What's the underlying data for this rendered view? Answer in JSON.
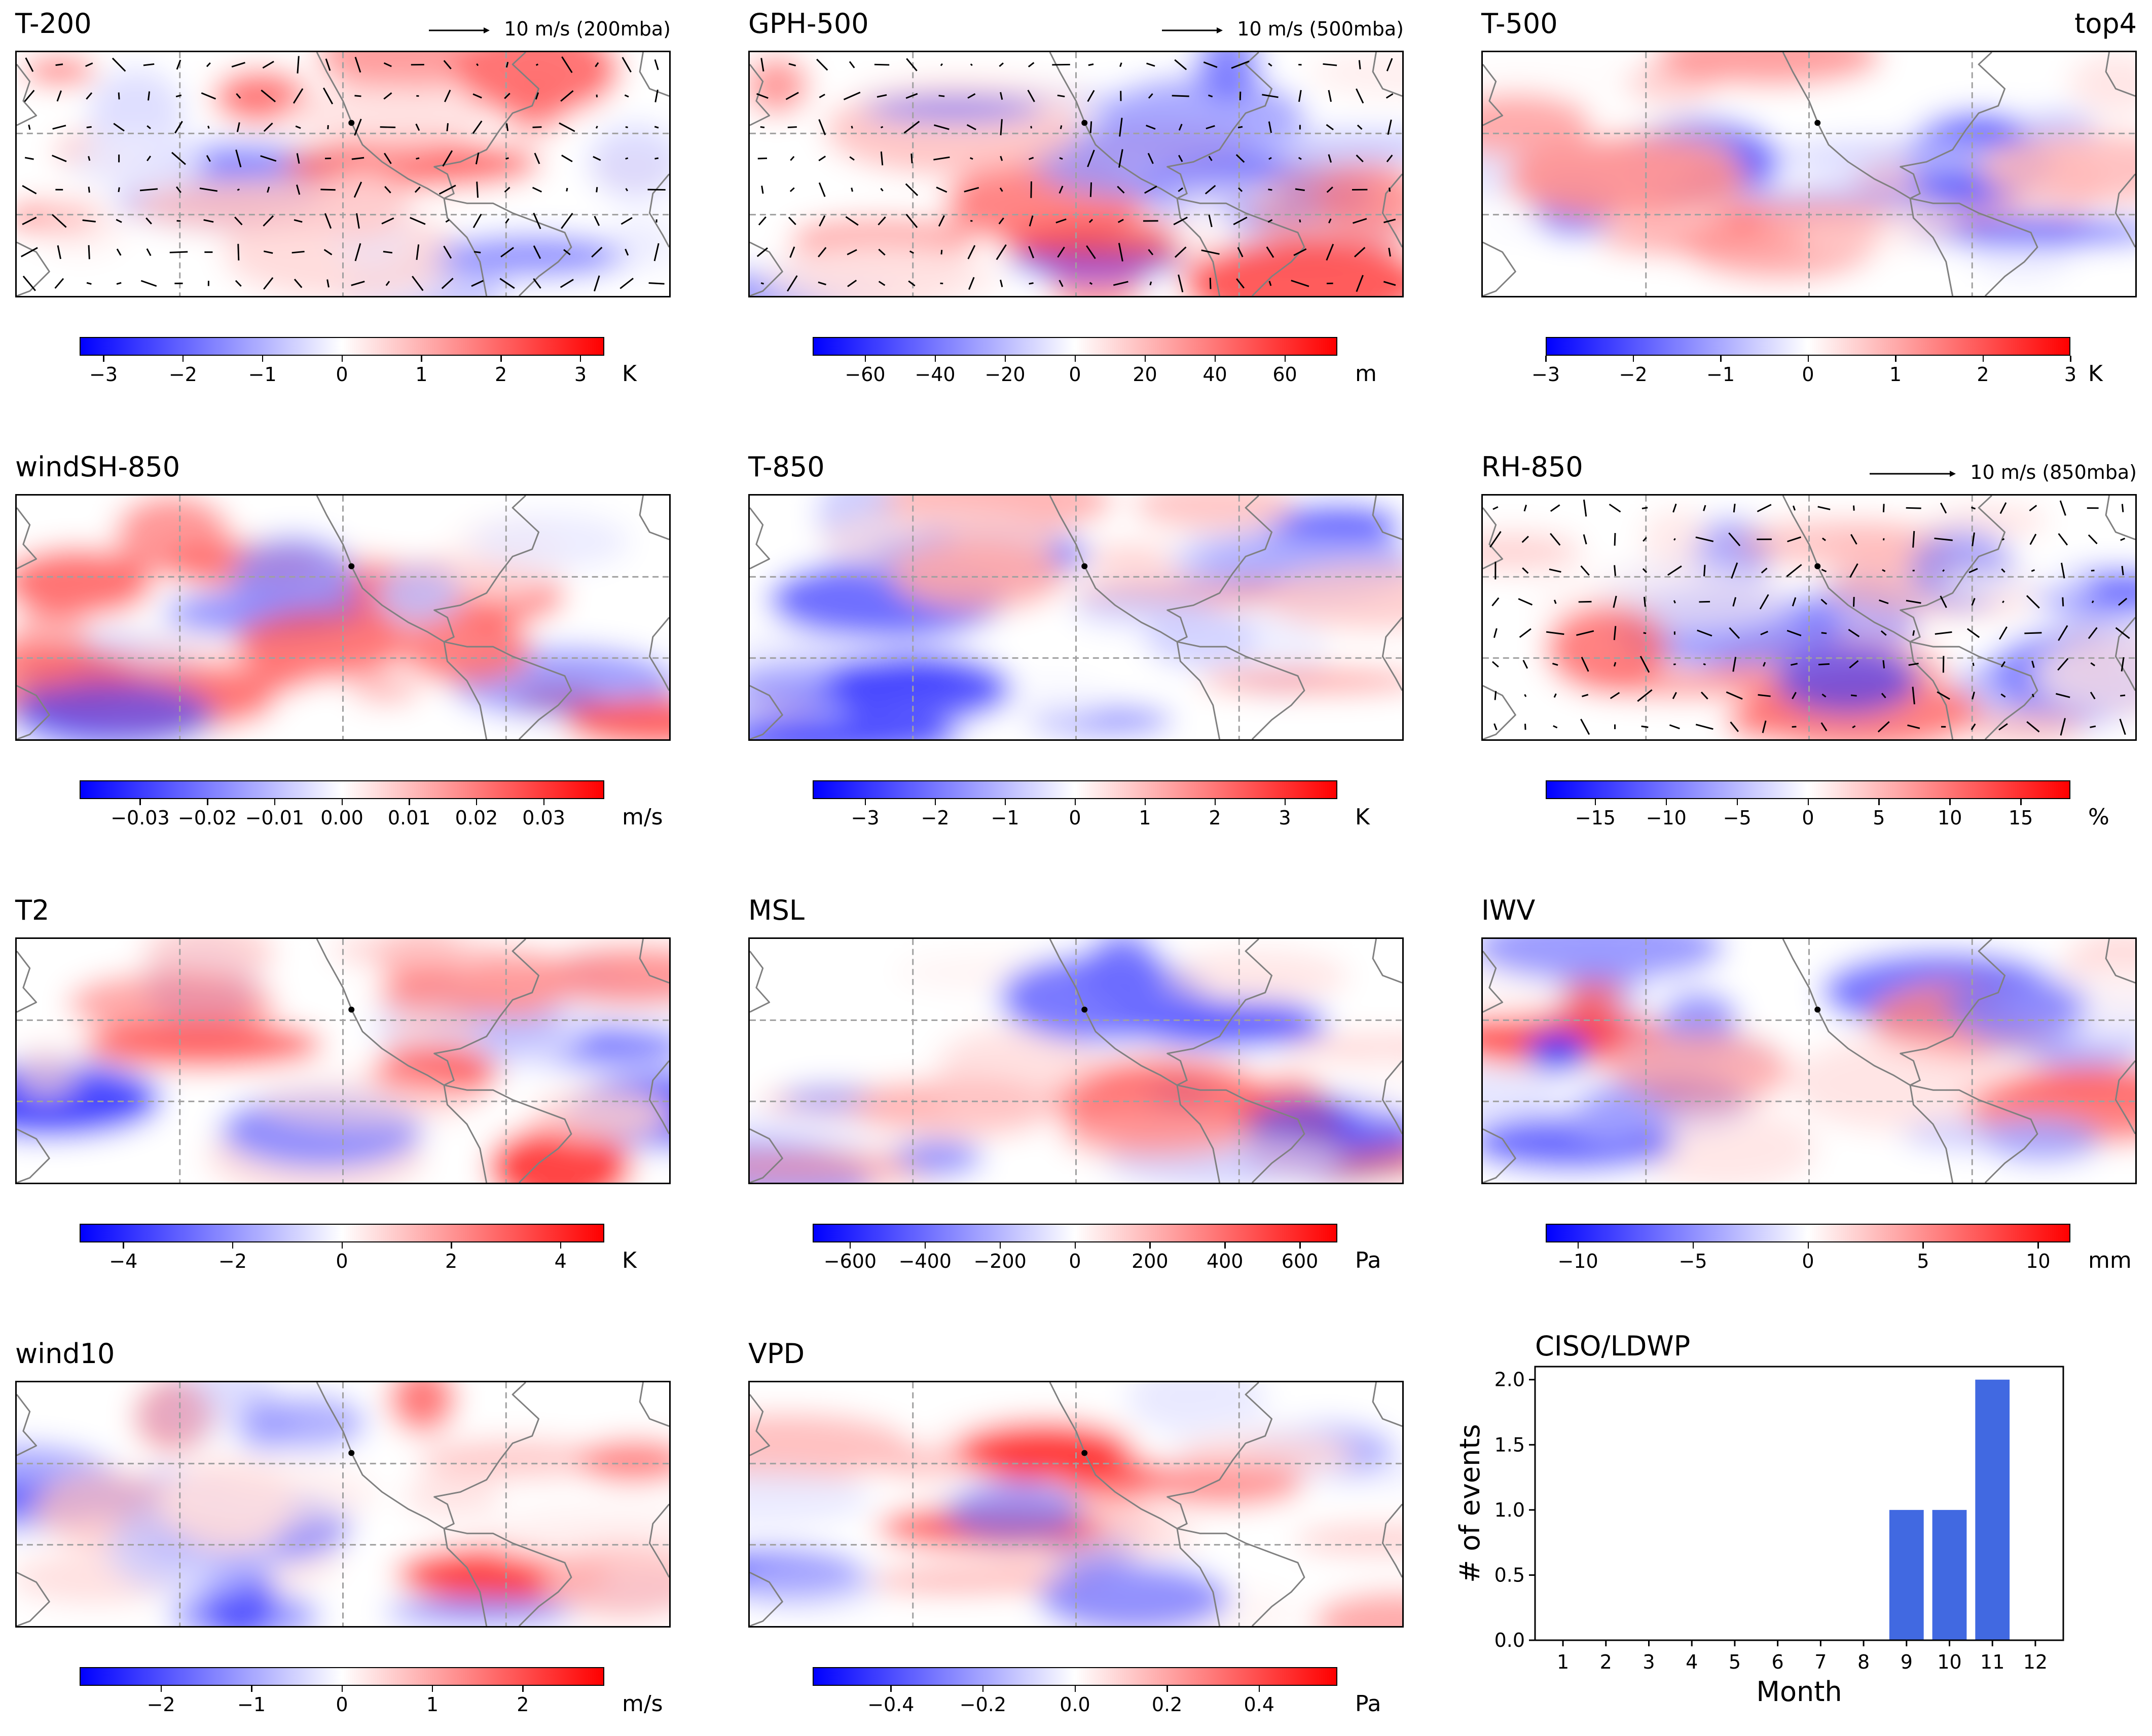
{
  "colors": {
    "cmap_low": "#0000ff",
    "cmap_mid": "#ffffff",
    "cmap_high": "#ff0000",
    "bar": "#4169e1",
    "coast": "#808080",
    "grid": "#a0a0a0"
  },
  "panels": [
    {
      "id": "t200",
      "title": "T-200",
      "title_right": "",
      "quiver_key": "10 m/s (200mba)",
      "vectors": true,
      "unit": "K",
      "range": [
        -3.3,
        3.3
      ],
      "ticks": [
        "−3",
        "−2",
        "−1",
        "0",
        "1",
        "2",
        "3"
      ],
      "tick_values": [
        -3,
        -2,
        -1,
        0,
        1,
        2,
        3
      ]
    },
    {
      "id": "gph500",
      "title": "GPH-500",
      "title_right": "",
      "quiver_key": "10 m/s (500mba)",
      "vectors": true,
      "unit": "m",
      "range": [
        -75,
        75
      ],
      "ticks": [
        "−60",
        "−40",
        "−20",
        "0",
        "20",
        "40",
        "60"
      ],
      "tick_values": [
        -60,
        -40,
        -20,
        0,
        20,
        40,
        60
      ]
    },
    {
      "id": "t500",
      "title": "T-500",
      "title_right": "top4",
      "quiver_key": "",
      "vectors": false,
      "unit": "K",
      "range": [
        -3,
        3
      ],
      "ticks": [
        "−3",
        "−2",
        "−1",
        "0",
        "1",
        "2",
        "3"
      ],
      "tick_values": [
        -3,
        -2,
        -1,
        0,
        1,
        2,
        3
      ]
    },
    {
      "id": "windsh850",
      "title": "windSH-850",
      "title_right": "",
      "quiver_key": "",
      "vectors": false,
      "unit": "m/s",
      "range": [
        -0.039,
        0.039
      ],
      "ticks": [
        "−0.03",
        "−0.02",
        "−0.01",
        "0.00",
        "0.01",
        "0.02",
        "0.03"
      ],
      "tick_values": [
        -0.03,
        -0.02,
        -0.01,
        0,
        0.01,
        0.02,
        0.03
      ]
    },
    {
      "id": "t850",
      "title": "T-850",
      "title_right": "",
      "quiver_key": "",
      "vectors": false,
      "unit": "K",
      "range": [
        -3.75,
        3.75
      ],
      "ticks": [
        "−3",
        "−2",
        "−1",
        "0",
        "1",
        "2",
        "3"
      ],
      "tick_values": [
        -3,
        -2,
        -1,
        0,
        1,
        2,
        3
      ]
    },
    {
      "id": "rh850",
      "title": "RH-850",
      "title_right": "",
      "quiver_key": "10 m/s (850mba)",
      "vectors": true,
      "unit": "%",
      "range": [
        -18.5,
        18.5
      ],
      "ticks": [
        "−15",
        "−10",
        "−5",
        "0",
        "5",
        "10",
        "15"
      ],
      "tick_values": [
        -15,
        -10,
        -5,
        0,
        5,
        10,
        15
      ]
    },
    {
      "id": "t2",
      "title": "T2",
      "title_right": "",
      "quiver_key": "",
      "vectors": false,
      "unit": "K",
      "range": [
        -4.8,
        4.8
      ],
      "ticks": [
        "−4",
        "−2",
        "0",
        "2",
        "4"
      ],
      "tick_values": [
        -4,
        -2,
        0,
        2,
        4
      ]
    },
    {
      "id": "msl",
      "title": "MSL",
      "title_right": "",
      "quiver_key": "",
      "vectors": false,
      "unit": "Pa",
      "range": [
        -700,
        700
      ],
      "ticks": [
        "−600",
        "−400",
        "−200",
        "0",
        "200",
        "400",
        "600"
      ],
      "tick_values": [
        -600,
        -400,
        -200,
        0,
        200,
        400,
        600
      ]
    },
    {
      "id": "iwv",
      "title": "IWV",
      "title_right": "",
      "quiver_key": "",
      "vectors": false,
      "unit": "mm",
      "range": [
        -11.4,
        11.4
      ],
      "ticks": [
        "−10",
        "−5",
        "0",
        "5",
        "10"
      ],
      "tick_values": [
        -10,
        -5,
        0,
        5,
        10
      ]
    },
    {
      "id": "wind10",
      "title": "wind10",
      "title_right": "",
      "quiver_key": "",
      "vectors": false,
      "unit": "m/s",
      "range": [
        -2.9,
        2.9
      ],
      "ticks": [
        "−2",
        "−1",
        "0",
        "1",
        "2"
      ],
      "tick_values": [
        -2,
        -1,
        0,
        1,
        2
      ]
    },
    {
      "id": "vpd",
      "title": "VPD",
      "title_right": "",
      "quiver_key": "",
      "vectors": false,
      "unit": "Pa",
      "range": [
        -0.57,
        0.57
      ],
      "ticks": [
        "−0.4",
        "−0.2",
        "0.0",
        "0.2",
        "0.4"
      ],
      "tick_values": [
        -0.4,
        -0.2,
        0,
        0.2,
        0.4
      ]
    }
  ],
  "chart_data": {
    "type": "bar",
    "title": "CISO/LDWP",
    "xlabel": "Month",
    "ylabel": "# of events",
    "categories": [
      "1",
      "2",
      "3",
      "4",
      "5",
      "6",
      "7",
      "8",
      "9",
      "10",
      "11",
      "12"
    ],
    "values": [
      0,
      0,
      0,
      0,
      0,
      0,
      0,
      0,
      1,
      1,
      2,
      0
    ],
    "ylim": [
      0,
      2.1
    ],
    "yticks": [
      "0.0",
      "0.5",
      "1.0",
      "1.5",
      "2.0"
    ],
    "ytick_values": [
      0,
      0.5,
      1.0,
      1.5,
      2.0
    ],
    "grid": false,
    "color": "#4169e1"
  }
}
